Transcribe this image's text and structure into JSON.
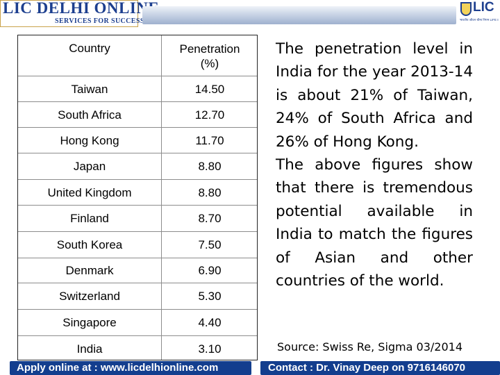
{
  "brand": {
    "title": "LIC DELHI ONLINE",
    "subtitle": "SERVICES FOR SUCCESS",
    "logo_text": "LIC",
    "logo_tagline": "भारतीय जीवन बीमा निगम LIFE INSURANCE CORPORATION OF INDIA"
  },
  "table": {
    "headers": {
      "country": "Country",
      "penetration_line1": "Penetration",
      "penetration_line2": "(%)"
    },
    "rows": [
      {
        "country": "Taiwan",
        "penetration": "14.50"
      },
      {
        "country": "South Africa",
        "penetration": "12.70"
      },
      {
        "country": "Hong Kong",
        "penetration": "11.70"
      },
      {
        "country": "Japan",
        "penetration": "8.80"
      },
      {
        "country": "United Kingdom",
        "penetration": "8.80"
      },
      {
        "country": "Finland",
        "penetration": "8.70"
      },
      {
        "country": "South Korea",
        "penetration": "7.50"
      },
      {
        "country": "Denmark",
        "penetration": "6.90"
      },
      {
        "country": "Switzerland",
        "penetration": "5.30"
      },
      {
        "country": "Singapore",
        "penetration": "4.40"
      },
      {
        "country": "India",
        "penetration": "3.10"
      }
    ]
  },
  "text": {
    "paragraph1": "The penetration level in India for the year 2013-14 is about 21% of Taiwan, 24% of South Africa and 26% of Hong Kong.",
    "paragraph2": "The above figures show that there is tremendous potential available in India to match the figures of Asian and other countries of the world.",
    "source": "Source: Swiss Re, Sigma 03/2014"
  },
  "footer": {
    "left": "Apply online at : www.licdelhionline.com",
    "right": "Contact : Dr. Vinay Deep on 9716146070"
  },
  "colors": {
    "brand_blue": "#1d3f8f",
    "footer_blue": "#133e8e",
    "brand_border_gold": "#c9a24a"
  }
}
